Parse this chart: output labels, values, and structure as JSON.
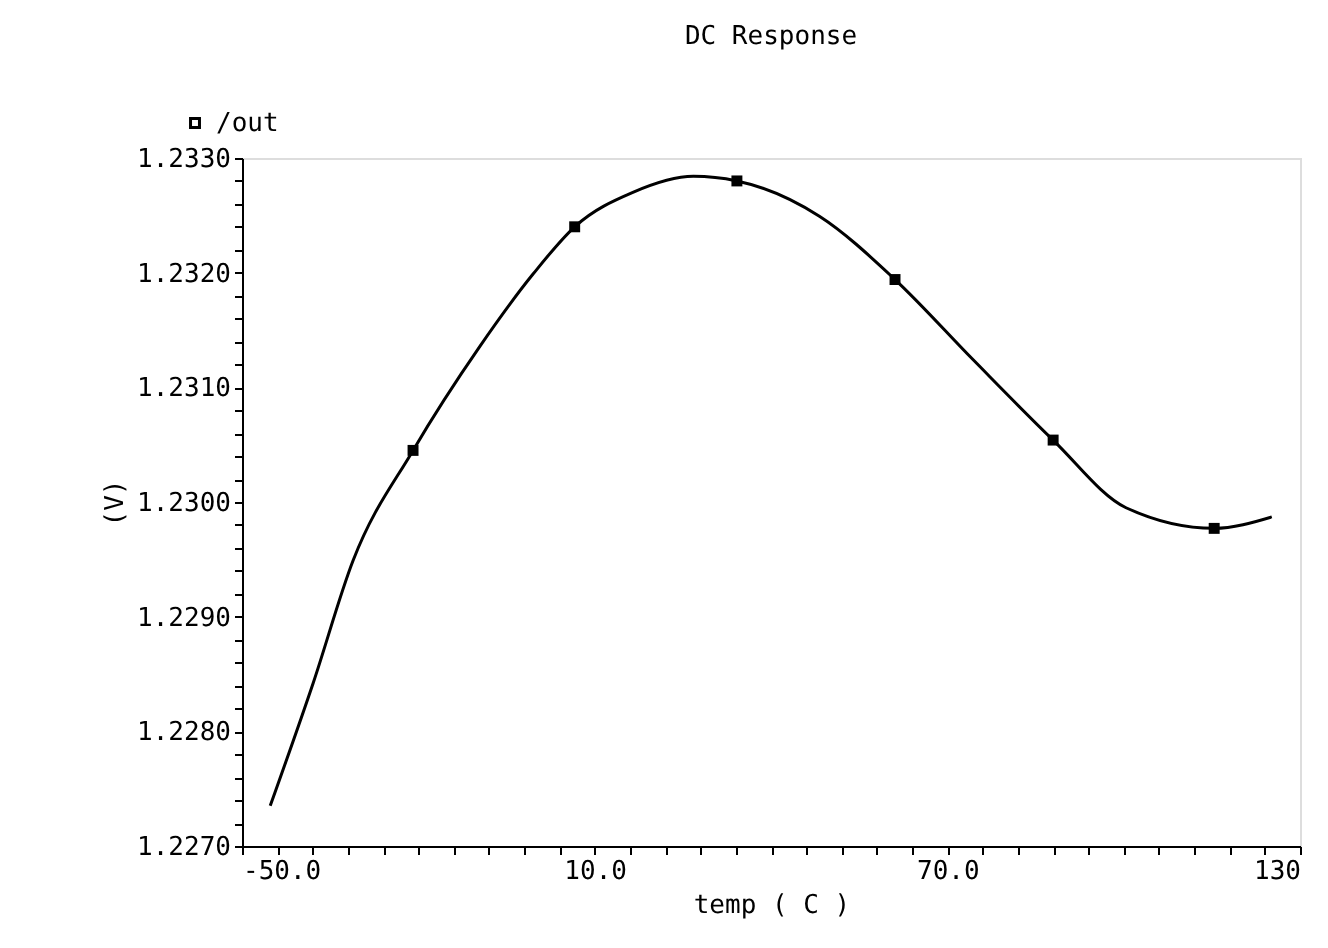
{
  "chart_data": {
    "type": "line",
    "title": "DC Response",
    "xlabel": "temp ( C )",
    "ylabel": "(V)",
    "xlim": [
      -50,
      130
    ],
    "ylim": [
      1.227,
      1.233
    ],
    "xticks": [
      {
        "value": -50,
        "label": "-50.0"
      },
      {
        "value": -44,
        "label": null
      },
      {
        "value": -38,
        "label": null
      },
      {
        "value": -32,
        "label": null
      },
      {
        "value": -26,
        "label": null
      },
      {
        "value": -20,
        "label": null
      },
      {
        "value": -14,
        "label": null
      },
      {
        "value": -8,
        "label": null
      },
      {
        "value": -2,
        "label": null
      },
      {
        "value": 4,
        "label": null
      },
      {
        "value": 10,
        "label": "10.0"
      },
      {
        "value": 16,
        "label": null
      },
      {
        "value": 22,
        "label": null
      },
      {
        "value": 28,
        "label": null
      },
      {
        "value": 34,
        "label": null
      },
      {
        "value": 40,
        "label": null
      },
      {
        "value": 46,
        "label": null
      },
      {
        "value": 52,
        "label": null
      },
      {
        "value": 58,
        "label": null
      },
      {
        "value": 64,
        "label": null
      },
      {
        "value": 70,
        "label": "70.0"
      },
      {
        "value": 76,
        "label": null
      },
      {
        "value": 82,
        "label": null
      },
      {
        "value": 88,
        "label": null
      },
      {
        "value": 94,
        "label": null
      },
      {
        "value": 100,
        "label": null
      },
      {
        "value": 106,
        "label": null
      },
      {
        "value": 112,
        "label": null
      },
      {
        "value": 118,
        "label": null
      },
      {
        "value": 124,
        "label": null
      },
      130
    ],
    "yticks": [
      {
        "value": 1.227,
        "label": "1.2270"
      },
      {
        "value": 1.2272,
        "label": null
      },
      {
        "value": 1.2274,
        "label": null
      },
      {
        "value": 1.2276,
        "label": null
      },
      {
        "value": 1.2278,
        "label": null
      },
      {
        "value": 1.228,
        "label": "1.2280"
      },
      {
        "value": 1.2282,
        "label": null
      },
      {
        "value": 1.2284,
        "label": null
      },
      {
        "value": 1.2286,
        "label": null
      },
      {
        "value": 1.2288,
        "label": null
      },
      {
        "value": 1.229,
        "label": "1.2290"
      },
      {
        "value": 1.2292,
        "label": null
      },
      {
        "value": 1.2294,
        "label": null
      },
      {
        "value": 1.2296,
        "label": null
      },
      {
        "value": 1.2298,
        "label": null
      },
      {
        "value": 1.23,
        "label": "1.2300"
      },
      {
        "value": 1.2302,
        "label": null
      },
      {
        "value": 1.2304,
        "label": null
      },
      {
        "value": 1.2306,
        "label": null
      },
      {
        "value": 1.2308,
        "label": null
      },
      {
        "value": 1.231,
        "label": "1.2310"
      },
      {
        "value": 1.2312,
        "label": null
      },
      {
        "value": 1.2314,
        "label": null
      },
      {
        "value": 1.2316,
        "label": null
      },
      {
        "value": 1.2318,
        "label": null
      },
      {
        "value": 1.232,
        "label": "1.2320"
      },
      {
        "value": 1.2322,
        "label": null
      },
      {
        "value": 1.2324,
        "label": null
      },
      {
        "value": 1.2326,
        "label": null
      },
      {
        "value": 1.2328,
        "label": null
      },
      {
        "value": 1.233,
        "label": "1.2330"
      }
    ],
    "grid": false,
    "legend": "top left",
    "series": [
      {
        "name": "/out",
        "color": "#000000",
        "marker": "none",
        "line_style": "solid",
        "x": [
          -45.2,
          -37.9,
          -31.1,
          -20.9,
          -9.5,
          -0.45,
          6.6,
          16.5,
          26.8,
          34.2,
          48.3,
          61.1,
          74.4,
          88.0,
          100.4,
          115.4,
          125.2
        ],
        "values": [
          1.22735,
          1.22842,
          1.22949,
          1.23045,
          1.23136,
          1.23199,
          1.2324,
          1.2327,
          1.23284,
          1.2328,
          1.23249,
          1.23194,
          1.23124,
          1.23054,
          1.22995,
          1.22977,
          1.22987
        ]
      },
      {
        "type": "scatter",
        "color": "#000000",
        "marker": "square",
        "x": [
          -20.9,
          6.6,
          34.2,
          61.1,
          88.0,
          115.4
        ],
        "values": [
          1.23045,
          1.2324,
          1.2328,
          1.23194,
          1.23054,
          1.22977
        ]
      }
    ]
  }
}
